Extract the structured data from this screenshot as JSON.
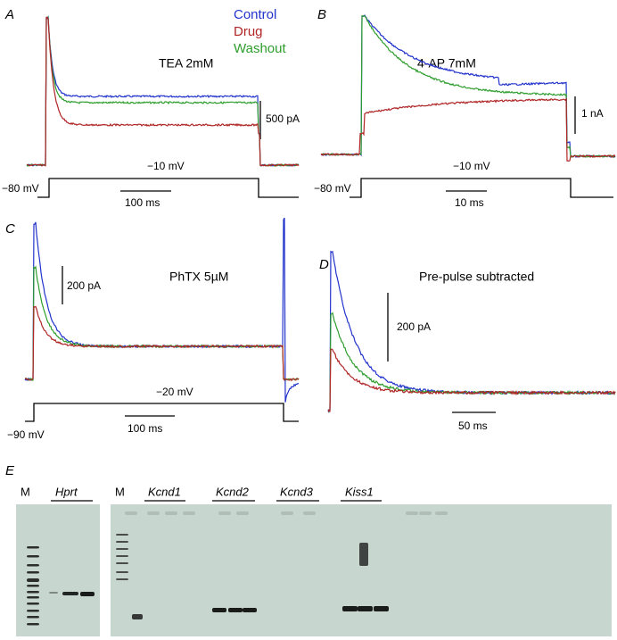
{
  "panels": [
    {
      "label": "A",
      "title": "TEA 2mM",
      "scale_current": "500 pA",
      "hold_voltage": "−80 mV",
      "step_voltage": "−10 mV",
      "scale_time": "100 ms"
    },
    {
      "label": "B",
      "title": "4-AP 7mM",
      "scale_current": "1 nA",
      "hold_voltage": "−80 mV",
      "step_voltage": "−10 mV",
      "scale_time": "10 ms"
    },
    {
      "label": "C",
      "title": "PhTX 5µM",
      "scale_current": "200 pA",
      "hold_voltage": "−90 mV",
      "step_voltage": "−20 mV",
      "scale_time": "100 ms"
    },
    {
      "label": "D",
      "title": "Pre-pulse subtracted",
      "scale_current": "200 pA",
      "scale_time": "50 ms"
    }
  ],
  "legend": [
    "Control",
    "Drug",
    "Washout"
  ],
  "gel": {
    "label": "E",
    "lanes": [
      "M",
      "Hprt",
      "M",
      "Kcnd1",
      "Kcnd2",
      "Kcnd3",
      "Kiss1"
    ]
  }
}
